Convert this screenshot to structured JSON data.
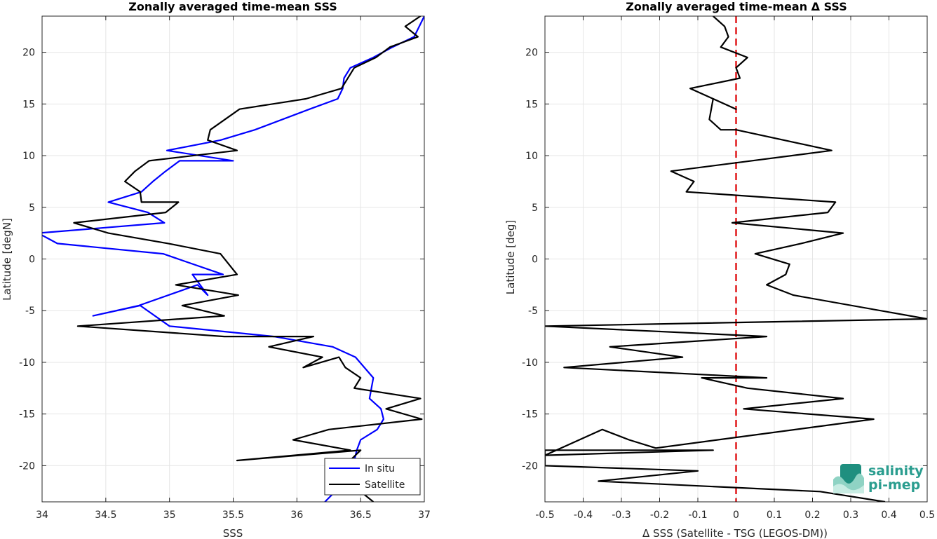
{
  "logo": {
    "line1": "salinity",
    "line2": "pi-mep",
    "color": "#2a9d8f"
  },
  "chart_data": [
    {
      "type": "line",
      "title": "Zonally averaged time-mean SSS",
      "xlabel": "SSS",
      "ylabel": "Latitude [degN]",
      "xlim": [
        34,
        37
      ],
      "ylim": [
        -23.5,
        23.5
      ],
      "xticks": [
        "34",
        "34.5",
        "35",
        "35.5",
        "36",
        "36.5",
        "37"
      ],
      "yticks": [
        "20",
        "15",
        "10",
        "5",
        "0",
        "-5",
        "-10",
        "-15",
        "-20"
      ],
      "grid": true,
      "legend_position": "bottom-right",
      "series": [
        {
          "name": "In situ",
          "color": "#0000ff",
          "x": [
            36.22,
            36.38,
            36.45,
            36.47,
            36.5,
            36.63,
            36.68,
            36.66,
            36.57,
            36.6,
            36.46,
            36.28,
            35.82,
            35.0,
            34.77,
            34.4,
            34.76,
            35.22,
            35.3,
            35.18,
            35.42,
            34.95,
            34.12,
            33.97,
            34.96,
            34.83,
            34.52,
            34.78,
            34.87,
            34.97,
            35.08,
            35.5,
            34.98,
            35.4,
            35.67,
            36.1,
            36.32,
            36.36,
            36.37,
            36.42,
            36.6,
            36.75,
            36.92,
            37.0
          ],
          "y": [
            -23.5,
            -21.5,
            -19.5,
            -18.5,
            -17.5,
            -16.5,
            -15.5,
            -14.5,
            -13.5,
            -11.5,
            -9.5,
            -8.5,
            -7.5,
            -6.5,
            -4.5,
            -5.5,
            -4.5,
            -2.5,
            -3.5,
            -1.5,
            -1.5,
            0.5,
            1.5,
            2.5,
            3.5,
            4.5,
            5.5,
            6.5,
            7.5,
            8.5,
            9.5,
            9.5,
            10.5,
            11.5,
            12.5,
            14.5,
            15.5,
            16.5,
            17.5,
            18.5,
            19.5,
            20.5,
            21.5,
            23.5
          ]
        },
        {
          "name": "Satellite",
          "color": "#000000",
          "x": [
            36.6,
            36.5,
            36.25,
            36.5,
            35.53,
            36.42,
            35.97,
            36.25,
            36.98,
            36.7,
            36.97,
            36.45,
            36.5,
            36.38,
            36.33,
            36.05,
            36.2,
            35.78,
            36.13,
            35.43,
            34.28,
            35.43,
            35.1,
            35.54,
            35.05,
            35.53,
            35.4,
            34.99,
            34.52,
            34.25,
            34.97,
            35.07,
            34.78,
            34.77,
            34.65,
            34.73,
            34.84,
            35.53,
            35.3,
            35.32,
            35.55,
            36.07,
            36.35,
            36.45,
            36.62,
            36.73,
            36.95,
            36.85,
            36.97
          ],
          "y": [
            -23.5,
            -22.5,
            -21.5,
            -18.5,
            -19.5,
            -18.5,
            -17.5,
            -16.5,
            -15.5,
            -14.5,
            -13.5,
            -12.5,
            -11.5,
            -10.5,
            -9.5,
            -10.5,
            -9.5,
            -8.5,
            -7.5,
            -7.5,
            -6.5,
            -5.5,
            -4.5,
            -3.5,
            -2.5,
            -1.5,
            0.5,
            1.5,
            2.5,
            3.5,
            4.5,
            5.5,
            5.5,
            6.5,
            7.5,
            8.5,
            9.5,
            10.5,
            11.5,
            12.5,
            14.5,
            15.5,
            16.5,
            18.5,
            19.5,
            20.5,
            21.5,
            22.5,
            23.5
          ]
        }
      ]
    },
    {
      "type": "line",
      "title": "Zonally averaged time-mean Δ SSS",
      "xlabel": "Δ SSS (Satellite - TSG (LEGOS-DM))",
      "ylabel": "Latitude [deg]",
      "xlim": [
        -0.5,
        0.5
      ],
      "ylim": [
        -23.5,
        23.5
      ],
      "xticks": [
        "-0.5",
        "-0.4",
        "-0.3",
        "-0.2",
        "-0.1",
        "0",
        "0.1",
        "0.2",
        "0.3",
        "0.4",
        "0.5"
      ],
      "yticks": [
        "20",
        "15",
        "10",
        "5",
        "0",
        "-5",
        "-10",
        "-15",
        "-20"
      ],
      "grid": true,
      "reference_line": {
        "x": 0,
        "color": "#e0191b",
        "style": "dashed"
      },
      "series": [
        {
          "color": "#000000",
          "x": [
            0.39,
            0.22,
            -0.36,
            -0.1,
            -0.5,
            -0.5,
            -0.06,
            -0.5,
            -0.5,
            -0.35,
            -0.28,
            -0.21,
            0.36,
            0.02,
            0.28,
            0.03,
            -0.09,
            0.08,
            -0.45,
            -0.14,
            -0.33,
            0.08,
            -0.5,
            0.5,
            0.15,
            0.08,
            0.13,
            0.14,
            0.05,
            0.17,
            0.28,
            -0.01,
            0.24,
            0.26,
            -0.13,
            -0.11,
            -0.17,
            0.25,
            0.0,
            -0.04,
            -0.07,
            -0.06,
            0.0,
            -0.12,
            0.01,
            0.0,
            0.03,
            -0.04,
            -0.02,
            -0.03,
            -0.06
          ],
          "y": [
            -23.5,
            -22.5,
            -21.5,
            -20.5,
            -20.0,
            -19.0,
            -18.5,
            -18.5,
            -19.0,
            -16.5,
            -17.5,
            -18.3,
            -15.5,
            -14.5,
            -13.5,
            -12.5,
            -11.5,
            -11.5,
            -10.5,
            -9.5,
            -8.5,
            -7.5,
            -6.5,
            -5.8,
            -3.5,
            -2.5,
            -1.5,
            -0.5,
            0.5,
            1.5,
            2.5,
            3.5,
            4.5,
            5.5,
            6.5,
            7.5,
            8.5,
            10.5,
            12.5,
            12.5,
            13.5,
            15.5,
            14.5,
            16.5,
            17.5,
            18.5,
            19.5,
            20.5,
            21.5,
            22.5,
            23.5
          ]
        }
      ]
    }
  ]
}
